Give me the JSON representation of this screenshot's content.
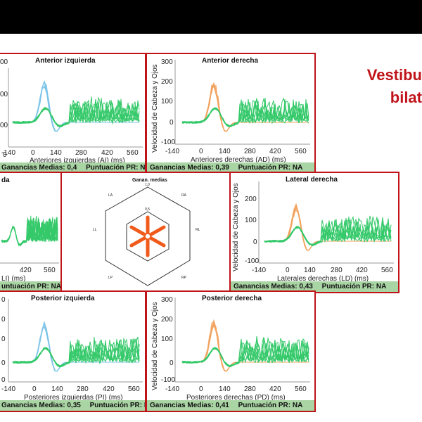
{
  "slide": {
    "title_line1": "Vestibu",
    "title_line2": "bilat"
  },
  "colors": {
    "frame": "#c0141a",
    "left_trace": "#7cc4e8",
    "right_trace": "#f2a35e",
    "eye_trace": "#35c96a",
    "footer_bg": "#a9d4a3",
    "hex_star": "#f05a1a"
  },
  "panels": {
    "anterior_izquierda": {
      "title": "Anterior izquierda",
      "xlabel": "Anteriores izquierdas (AI) (ms)",
      "xticks": [
        "-140",
        "0",
        "140",
        "280",
        "420",
        "560"
      ],
      "yticks": [
        "00",
        "00",
        "00",
        "0"
      ],
      "gain": "Ganancias Medias: 0,4",
      "score": "Puntuación PR: NA"
    },
    "anterior_derecha": {
      "title": "Anterior derecha",
      "ylabel": "Velocidad de Cabeza y Ojos",
      "xlabel": "Anteriores derechas (AD) (ms)",
      "xticks": [
        "-140",
        "0",
        "140",
        "280",
        "420",
        "560"
      ],
      "yticks": [
        "300",
        "200",
        "100",
        "0",
        "-100"
      ],
      "gain": "Ganancias Medias: 0,39",
      "score": "Puntuación PR: NA"
    },
    "lateral_izquierda": {
      "title": "da",
      "xlabel": "LI) (ms)",
      "xticks": [
        "420",
        "560"
      ],
      "gain": "",
      "score": "untuación PR: NA"
    },
    "ganancias": {
      "title": "Ganan. medias",
      "labels": {
        "top": "1,0",
        "half": "0,5",
        "la": "LA",
        "ra": "RA",
        "ll": "LL",
        "rl": "RL",
        "lp": "LP",
        "rp": "RP"
      }
    },
    "lateral_derecha": {
      "title": "Lateral derecha",
      "ylabel": "Velocidad de Cabeza y Ojos",
      "xlabel": "Laterales derechas (LD) (ms)",
      "xticks": [
        "-140",
        "0",
        "140",
        "280",
        "420",
        "560"
      ],
      "yticks": [
        "200",
        "100",
        "0",
        "-100"
      ],
      "gain": "Ganancias Medias: 0,43",
      "score": "Puntuación PR: NA"
    },
    "posterior_izquierda": {
      "title": "Posterior izquierda",
      "xlabel": "Posteriores izquierdas (PI) (ms)",
      "xticks": [
        "-140",
        "0",
        "140",
        "280",
        "420",
        "560"
      ],
      "yticks": [
        "0",
        "0",
        "0",
        "0",
        "0"
      ],
      "gain": "Ganancias Medias: 0,35",
      "score": "Puntuación PR: NA"
    },
    "posterior_derecha": {
      "title": "Posterior derecha",
      "ylabel": "Velocidad de Cabeza y Ojos",
      "xlabel": "Posteriores derechas (PD) (ms)",
      "xticks": [
        "-140",
        "0",
        "140",
        "280",
        "420",
        "560"
      ],
      "yticks": [
        "300",
        "200",
        "100",
        "0",
        "-100"
      ],
      "gain": "Ganancias Medias: 0,41",
      "score": "Puntuación PR: NA"
    }
  }
}
